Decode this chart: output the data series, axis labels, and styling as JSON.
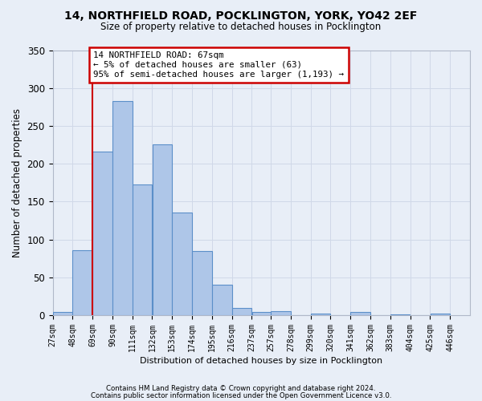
{
  "title": "14, NORTHFIELD ROAD, POCKLINGTON, YORK, YO42 2EF",
  "subtitle": "Size of property relative to detached houses in Pocklington",
  "xlabel": "Distribution of detached houses by size in Pocklington",
  "ylabel": "Number of detached properties",
  "bins": [
    "27sqm",
    "48sqm",
    "69sqm",
    "90sqm",
    "111sqm",
    "132sqm",
    "153sqm",
    "174sqm",
    "195sqm",
    "216sqm",
    "237sqm",
    "257sqm",
    "278sqm",
    "299sqm",
    "320sqm",
    "341sqm",
    "362sqm",
    "383sqm",
    "404sqm",
    "425sqm",
    "446sqm"
  ],
  "bin_edges": [
    27,
    48,
    69,
    90,
    111,
    132,
    153,
    174,
    195,
    216,
    237,
    257,
    278,
    299,
    320,
    341,
    362,
    383,
    404,
    425,
    446
  ],
  "counts": [
    4,
    86,
    216,
    283,
    173,
    226,
    136,
    85,
    40,
    10,
    4,
    5,
    0,
    2,
    0,
    4,
    0,
    1,
    0,
    2
  ],
  "bar_color": "#aec6e8",
  "bar_edge_color": "#5b8fc9",
  "vline_x": 69,
  "annotation_line1": "14 NORTHFIELD ROAD: 67sqm",
  "annotation_line2": "← 5% of detached houses are smaller (63)",
  "annotation_line3": "95% of semi-detached houses are larger (1,193) →",
  "annotation_box_color": "#ffffff",
  "annotation_box_edge": "#cc0000",
  "vline_color": "#cc0000",
  "grid_color": "#d0d8e8",
  "background_color": "#e8eef7",
  "ylim": [
    0,
    350
  ],
  "yticks": [
    0,
    50,
    100,
    150,
    200,
    250,
    300,
    350
  ],
  "footer1": "Contains HM Land Registry data © Crown copyright and database right 2024.",
  "footer2": "Contains public sector information licensed under the Open Government Licence v3.0."
}
